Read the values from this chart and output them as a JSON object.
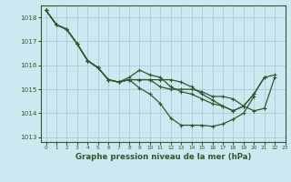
{
  "title": "Graphe pression niveau de la mer (hPa)",
  "bg_color": "#cde8f0",
  "grid_color": "#a8cdd8",
  "line_color": "#2d5a2d",
  "xlim": [
    -0.5,
    23
  ],
  "ylim": [
    1012.8,
    1018.5
  ],
  "yticks": [
    1013,
    1014,
    1015,
    1016,
    1017,
    1018
  ],
  "xticks": [
    0,
    1,
    2,
    3,
    4,
    5,
    6,
    7,
    8,
    9,
    10,
    11,
    12,
    13,
    14,
    15,
    16,
    17,
    18,
    19,
    20,
    21,
    22,
    23
  ],
  "series": [
    [
      1018.3,
      1017.7,
      1017.5,
      1016.9,
      1016.2,
      1015.9,
      1015.4,
      1015.3,
      1015.4,
      1015.4,
      1015.4,
      1015.1,
      1015.0,
      1015.0,
      1015.0,
      1014.9,
      1014.7,
      1014.7,
      1014.6,
      1014.3,
      1014.1,
      1014.2,
      1015.5,
      null
    ],
    [
      1018.3,
      1017.7,
      1017.5,
      1016.9,
      1016.2,
      1015.9,
      1015.4,
      1015.3,
      1015.4,
      1015.4,
      1015.4,
      1015.4,
      1015.4,
      1015.3,
      1015.1,
      1014.8,
      1014.55,
      1014.3,
      1014.1,
      1014.3,
      1014.8,
      1015.5,
      null,
      null
    ],
    [
      1018.3,
      1017.7,
      1017.5,
      1016.9,
      1016.2,
      1015.9,
      1015.4,
      1015.3,
      1015.4,
      1015.05,
      1014.8,
      1014.4,
      1013.8,
      1013.5,
      1013.5,
      1013.5,
      1013.45,
      1013.55,
      1013.75,
      1014.0,
      1014.7,
      null,
      null,
      null
    ],
    [
      1018.3,
      1017.7,
      1017.5,
      1016.9,
      1016.2,
      1015.9,
      1015.4,
      1015.3,
      1015.5,
      1015.8,
      1015.6,
      1015.5,
      1015.1,
      1014.9,
      1014.8,
      1014.6,
      1014.4,
      1014.3,
      1014.1,
      1014.3,
      1014.8,
      1015.5,
      1015.6,
      null
    ]
  ]
}
